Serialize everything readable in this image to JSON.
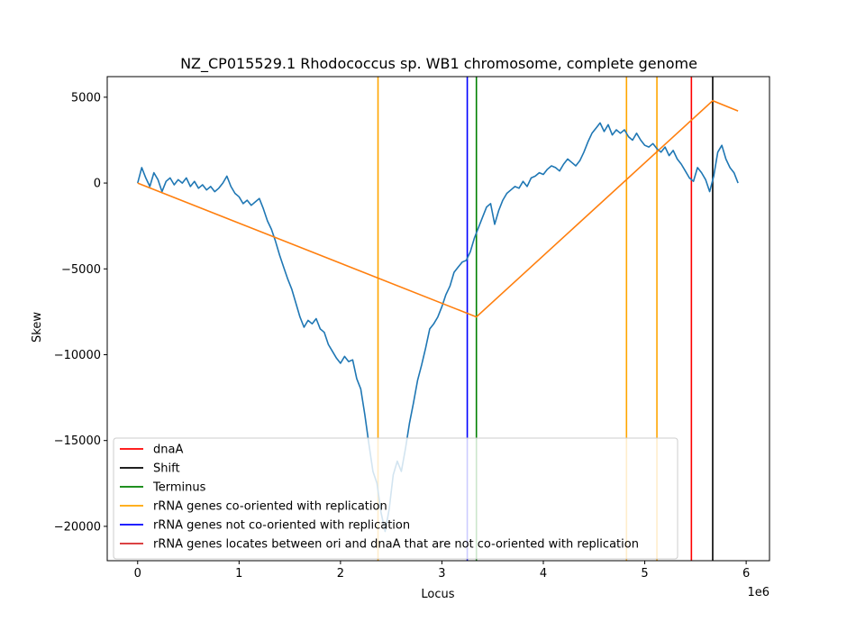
{
  "chart_data": {
    "type": "line",
    "title": "NZ_CP015529.1 Rhodococcus sp. WB1 chromosome, complete genome",
    "xlabel": "Locus",
    "ylabel": "Skew",
    "x_offset_label": "1e6",
    "xlim": [
      -300000,
      6230000
    ],
    "ylim": [
      -22000,
      6200000
    ],
    "ylim_real": [
      -22000,
      6200
    ],
    "xticks": [
      0,
      1000000,
      2000000,
      3000000,
      4000000,
      5000000,
      6000000
    ],
    "xtick_labels": [
      "0",
      "1",
      "2",
      "3",
      "4",
      "5",
      "6"
    ],
    "yticks": [
      5000,
      0,
      -5000,
      -10000,
      -15000,
      -20000
    ],
    "ytick_labels": [
      "5000",
      "0",
      "−5000",
      "−10000",
      "−15000",
      "−20000"
    ],
    "grid": false,
    "legend_placement": "lower-left",
    "skew_series": {
      "color": "#1f77b4",
      "x": [
        0,
        40000,
        80000,
        120000,
        160000,
        200000,
        240000,
        280000,
        320000,
        360000,
        400000,
        440000,
        480000,
        520000,
        560000,
        600000,
        640000,
        680000,
        720000,
        760000,
        800000,
        840000,
        880000,
        920000,
        960000,
        1000000,
        1040000,
        1080000,
        1120000,
        1160000,
        1200000,
        1240000,
        1280000,
        1320000,
        1360000,
        1400000,
        1440000,
        1480000,
        1520000,
        1560000,
        1600000,
        1640000,
        1680000,
        1720000,
        1760000,
        1800000,
        1840000,
        1880000,
        1920000,
        1960000,
        2000000,
        2040000,
        2080000,
        2120000,
        2160000,
        2200000,
        2240000,
        2280000,
        2320000,
        2360000,
        2400000,
        2440000,
        2480000,
        2520000,
        2560000,
        2600000,
        2640000,
        2680000,
        2720000,
        2760000,
        2800000,
        2840000,
        2880000,
        2920000,
        2960000,
        3000000,
        3040000,
        3080000,
        3120000,
        3160000,
        3200000,
        3240000,
        3280000,
        3320000,
        3360000,
        3400000,
        3440000,
        3480000,
        3520000,
        3560000,
        3600000,
        3640000,
        3680000,
        3720000,
        3760000,
        3800000,
        3840000,
        3880000,
        3920000,
        3960000,
        4000000,
        4040000,
        4080000,
        4120000,
        4160000,
        4200000,
        4240000,
        4280000,
        4320000,
        4360000,
        4400000,
        4440000,
        4480000,
        4520000,
        4560000,
        4600000,
        4640000,
        4680000,
        4720000,
        4760000,
        4800000,
        4840000,
        4880000,
        4920000,
        4960000,
        5000000,
        5040000,
        5080000,
        5120000,
        5160000,
        5200000,
        5240000,
        5280000,
        5320000,
        5360000,
        5400000,
        5440000,
        5480000,
        5520000,
        5560000,
        5600000,
        5640000,
        5680000,
        5720000,
        5760000,
        5800000,
        5840000,
        5880000,
        5920000
      ],
      "y": [
        0,
        900,
        300,
        -200,
        600,
        200,
        -500,
        100,
        300,
        -100,
        200,
        0,
        300,
        -200,
        100,
        -300,
        -100,
        -400,
        -200,
        -500,
        -300,
        0,
        400,
        -200,
        -600,
        -800,
        -1200,
        -1000,
        -1300,
        -1100,
        -900,
        -1500,
        -2200,
        -2700,
        -3400,
        -4200,
        -4900,
        -5600,
        -6200,
        -7000,
        -7800,
        -8400,
        -8000,
        -8200,
        -7900,
        -8500,
        -8700,
        -9400,
        -9800,
        -10200,
        -10500,
        -10100,
        -10400,
        -10300,
        -11400,
        -12000,
        -13500,
        -15200,
        -16800,
        -17500,
        -19200,
        -20300,
        -19000,
        -17000,
        -16200,
        -16800,
        -15500,
        -14000,
        -12800,
        -11500,
        -10600,
        -9600,
        -8500,
        -8200,
        -7800,
        -7200,
        -6500,
        -6000,
        -5200,
        -4900,
        -4600,
        -4500,
        -4000,
        -3200,
        -2600,
        -2000,
        -1400,
        -1200,
        -2400,
        -1600,
        -1000,
        -600,
        -400,
        -200,
        -300,
        100,
        -200,
        300,
        400,
        600,
        500,
        800,
        1000,
        900,
        700,
        1100,
        1400,
        1200,
        1000,
        1300,
        1800,
        2400,
        2900,
        3200,
        3500,
        3000,
        3400,
        2800,
        3100,
        2900,
        3100,
        2700,
        2500,
        2900,
        2500,
        2200,
        2100,
        2300,
        2000,
        1800,
        2100,
        1600,
        1900,
        1400,
        1100,
        700,
        300,
        100,
        900,
        600,
        200,
        -500,
        400,
        1800,
        2200,
        1400,
        900,
        600,
        0
      ]
    },
    "trend_series": {
      "color": "#ff7f0e",
      "x": [
        0,
        3340000,
        5670000,
        5920000
      ],
      "y": [
        0,
        -7800,
        4800,
        4200
      ]
    },
    "vlines": [
      {
        "series": "rRNA genes co-oriented with replication",
        "x": 2370000,
        "color": "#ffa500"
      },
      {
        "series": "rRNA genes not co-oriented with replication",
        "x": 3250000,
        "color": "#0000ff"
      },
      {
        "series": "Terminus",
        "x": 3340000,
        "color": "#008000"
      },
      {
        "series": "rRNA genes co-oriented with replication",
        "x": 4820000,
        "color": "#ffa500"
      },
      {
        "series": "rRNA genes co-oriented with replication",
        "x": 5120000,
        "color": "#ffa500"
      },
      {
        "series": "dnaA",
        "x": 5460000,
        "color": "#ff0000"
      },
      {
        "series": "Shift",
        "x": 5670000,
        "color": "#000000"
      }
    ],
    "legend": [
      {
        "label": "dnaA",
        "color": "#ff0000"
      },
      {
        "label": "Shift",
        "color": "#000000"
      },
      {
        "label": "Terminus",
        "color": "#008000"
      },
      {
        "label": "rRNA genes co-oriented with replication",
        "color": "#ffa500"
      },
      {
        "label": "rRNA genes not co-oriented with replication",
        "color": "#0000ff"
      },
      {
        "label": "rRNA genes locates between ori and dnaA that are not co-oriented with replication",
        "color": "#d62728"
      }
    ]
  }
}
